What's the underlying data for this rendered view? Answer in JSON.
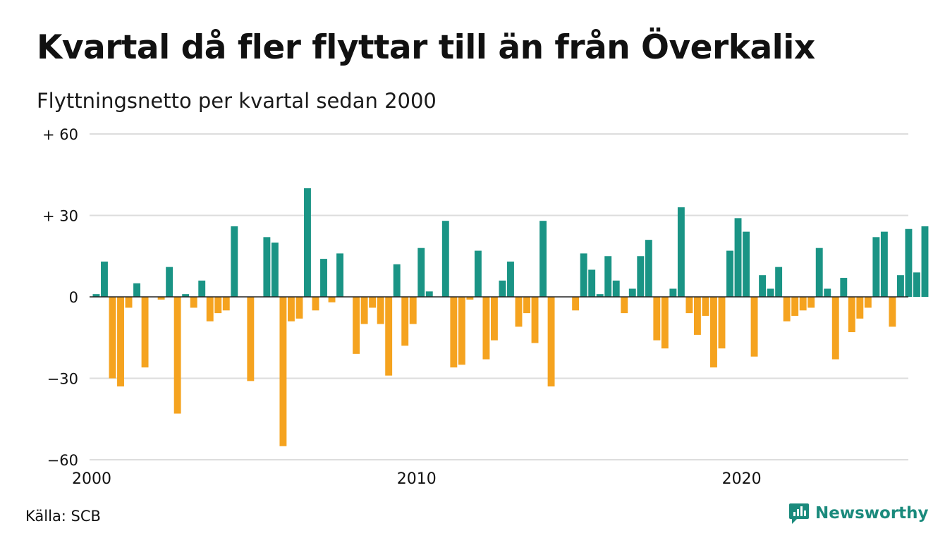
{
  "title": "Kvartal då fler flyttar till än från Överkalix",
  "subtitle": "Flyttningsnetto per kvartal sedan 2000",
  "source": "Källa: SCB",
  "brand": "Newsworthy",
  "colors": {
    "positive": "#1a9485",
    "negative": "#f5a31f",
    "grid": "#dddddd",
    "brand": "#1a8a7c"
  },
  "chart_data": {
    "type": "bar",
    "ylim": [
      -60,
      60
    ],
    "y_ticks": [
      60,
      30,
      0,
      -30,
      -60
    ],
    "y_tick_labels": [
      "+ 60",
      "+ 30",
      "0",
      "−30",
      "−60"
    ],
    "x_ticks": [
      2000,
      2010,
      2020
    ],
    "x_tick_labels": [
      "2000",
      "2010",
      "2020"
    ],
    "grid": true,
    "start_year": 2000,
    "series": [
      {
        "values": [
          1,
          13,
          -30,
          -33,
          -4,
          5,
          -26,
          0,
          -1,
          11,
          -43,
          1,
          -4,
          6,
          -9,
          -6,
          -5,
          26,
          0,
          -31,
          0,
          22,
          20,
          -55,
          -9,
          -8,
          40,
          -5,
          14,
          -2,
          16,
          0,
          -21,
          -10,
          -4,
          -10,
          -29,
          12,
          -18,
          -10,
          18,
          2,
          0,
          28,
          -26,
          -25,
          -1,
          17,
          -23,
          -16,
          6,
          13,
          -11,
          -6,
          -17,
          28,
          -33,
          0,
          0,
          -5,
          16,
          10,
          1,
          15,
          6,
          -6,
          3,
          15,
          21,
          -16,
          -19,
          3,
          33,
          -6,
          -14,
          -7,
          -26,
          -19,
          17,
          29,
          24,
          -22,
          8,
          3,
          11,
          -9,
          -7,
          -5,
          -4,
          18,
          3,
          -23,
          7,
          -13,
          -8,
          -4,
          22,
          24,
          -11,
          8,
          25,
          9,
          26
        ]
      }
    ]
  }
}
